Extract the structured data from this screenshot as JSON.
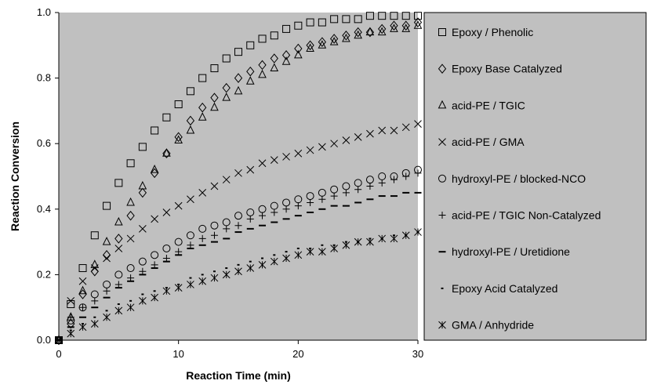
{
  "chart_data": {
    "type": "scatter",
    "title": "",
    "xlabel": "Reaction Time (min)",
    "ylabel": "Reaction Conversion",
    "xlim": [
      0,
      30
    ],
    "ylim": [
      0,
      1.0
    ],
    "xticks": [
      0,
      10,
      20,
      30
    ],
    "yticks": [
      0.0,
      0.2,
      0.4,
      0.6,
      0.8,
      1.0
    ],
    "ytick_labels": [
      "0.0",
      "0.2",
      "0.4",
      "0.6",
      "0.8",
      "1.0"
    ],
    "xtick_labels": [
      "0",
      "10",
      "20",
      "30"
    ],
    "grid": false,
    "plot_background": "#c0c0c0",
    "marker_color": "#000000",
    "legend_position": "right",
    "series": [
      {
        "name": "Epoxy / Phenolic",
        "marker": "square",
        "x": [
          0,
          1,
          2,
          3,
          4,
          5,
          6,
          7,
          8,
          9,
          10,
          11,
          12,
          13,
          14,
          15,
          16,
          17,
          18,
          19,
          20,
          21,
          22,
          23,
          24,
          25,
          26,
          27,
          28,
          29,
          30
        ],
        "y": [
          0,
          0.11,
          0.22,
          0.32,
          0.41,
          0.48,
          0.54,
          0.59,
          0.64,
          0.68,
          0.72,
          0.76,
          0.8,
          0.83,
          0.86,
          0.88,
          0.9,
          0.92,
          0.93,
          0.95,
          0.96,
          0.97,
          0.97,
          0.98,
          0.98,
          0.98,
          0.99,
          0.99,
          0.99,
          0.99,
          0.99
        ]
      },
      {
        "name": "Epoxy Base Catalyzed",
        "marker": "diamond",
        "x": [
          0,
          1,
          2,
          3,
          4,
          5,
          6,
          7,
          8,
          9,
          10,
          11,
          12,
          13,
          14,
          15,
          16,
          17,
          18,
          19,
          20,
          21,
          22,
          23,
          24,
          25,
          26,
          27,
          28,
          29,
          30
        ],
        "y": [
          0,
          0.05,
          0.14,
          0.21,
          0.26,
          0.31,
          0.38,
          0.45,
          0.51,
          0.57,
          0.62,
          0.67,
          0.71,
          0.74,
          0.77,
          0.8,
          0.82,
          0.84,
          0.86,
          0.87,
          0.89,
          0.9,
          0.91,
          0.92,
          0.93,
          0.94,
          0.94,
          0.95,
          0.96,
          0.96,
          0.97
        ]
      },
      {
        "name": "acid-PE / TGIC",
        "marker": "triangle",
        "x": [
          0,
          1,
          2,
          3,
          4,
          5,
          6,
          7,
          8,
          9,
          10,
          11,
          12,
          13,
          14,
          15,
          16,
          17,
          18,
          19,
          20,
          21,
          22,
          23,
          24,
          25,
          26,
          27,
          28,
          29,
          30
        ],
        "y": [
          0,
          0.07,
          0.15,
          0.23,
          0.3,
          0.36,
          0.42,
          0.47,
          0.52,
          0.57,
          0.61,
          0.64,
          0.68,
          0.71,
          0.74,
          0.76,
          0.79,
          0.81,
          0.83,
          0.85,
          0.87,
          0.89,
          0.9,
          0.91,
          0.92,
          0.93,
          0.94,
          0.94,
          0.95,
          0.95,
          0.96
        ]
      },
      {
        "name": "acid-PE / GMA",
        "marker": "x",
        "x": [
          0,
          1,
          2,
          3,
          4,
          5,
          6,
          7,
          8,
          9,
          10,
          11,
          12,
          13,
          14,
          15,
          16,
          17,
          18,
          19,
          20,
          21,
          22,
          23,
          24,
          25,
          26,
          27,
          28,
          29,
          30
        ],
        "y": [
          0,
          0.12,
          0.18,
          0.22,
          0.25,
          0.28,
          0.31,
          0.34,
          0.37,
          0.39,
          0.41,
          0.43,
          0.45,
          0.47,
          0.49,
          0.51,
          0.52,
          0.54,
          0.55,
          0.56,
          0.57,
          0.58,
          0.59,
          0.6,
          0.61,
          0.62,
          0.63,
          0.64,
          0.64,
          0.65,
          0.66
        ]
      },
      {
        "name": "hydroxyl-PE / blocked-NCO",
        "marker": "circle",
        "x": [
          0,
          1,
          2,
          3,
          4,
          5,
          6,
          7,
          8,
          9,
          10,
          11,
          12,
          13,
          14,
          15,
          16,
          17,
          18,
          19,
          20,
          21,
          22,
          23,
          24,
          25,
          26,
          27,
          28,
          29,
          30
        ],
        "y": [
          0,
          0.06,
          0.1,
          0.14,
          0.17,
          0.2,
          0.22,
          0.24,
          0.26,
          0.28,
          0.3,
          0.32,
          0.34,
          0.35,
          0.36,
          0.38,
          0.39,
          0.4,
          0.41,
          0.42,
          0.43,
          0.44,
          0.45,
          0.46,
          0.47,
          0.48,
          0.49,
          0.5,
          0.5,
          0.51,
          0.52
        ]
      },
      {
        "name": "acid-PE / TGIC Non-Catalyzed",
        "marker": "plus",
        "x": [
          0,
          1,
          2,
          3,
          4,
          5,
          6,
          7,
          8,
          9,
          10,
          11,
          12,
          13,
          14,
          15,
          16,
          17,
          18,
          19,
          20,
          21,
          22,
          23,
          24,
          25,
          26,
          27,
          28,
          29,
          30
        ],
        "y": [
          0,
          0.07,
          0.1,
          0.12,
          0.15,
          0.17,
          0.19,
          0.21,
          0.23,
          0.25,
          0.27,
          0.29,
          0.31,
          0.32,
          0.34,
          0.35,
          0.37,
          0.38,
          0.39,
          0.4,
          0.41,
          0.42,
          0.43,
          0.44,
          0.45,
          0.46,
          0.47,
          0.48,
          0.49,
          0.5,
          0.51
        ]
      },
      {
        "name": "hydroxyl-PE / Uretidione",
        "marker": "long-dash",
        "x": [
          0,
          1,
          2,
          3,
          4,
          5,
          6,
          7,
          8,
          9,
          10,
          11,
          12,
          13,
          14,
          15,
          16,
          17,
          18,
          19,
          20,
          21,
          22,
          23,
          24,
          25,
          26,
          27,
          28,
          29,
          30
        ],
        "y": [
          0,
          0.04,
          0.07,
          0.1,
          0.13,
          0.16,
          0.18,
          0.2,
          0.22,
          0.24,
          0.26,
          0.28,
          0.29,
          0.3,
          0.31,
          0.33,
          0.34,
          0.35,
          0.36,
          0.37,
          0.38,
          0.39,
          0.4,
          0.41,
          0.41,
          0.42,
          0.43,
          0.44,
          0.44,
          0.45,
          0.45
        ]
      },
      {
        "name": "Epoxy Acid Catalyzed",
        "marker": "short-dash",
        "x": [
          0,
          1,
          2,
          3,
          4,
          5,
          6,
          7,
          8,
          9,
          10,
          11,
          12,
          13,
          14,
          15,
          16,
          17,
          18,
          19,
          20,
          21,
          22,
          23,
          24,
          25,
          26,
          27,
          28,
          29,
          30
        ],
        "y": [
          0,
          0.03,
          0.05,
          0.07,
          0.09,
          0.11,
          0.12,
          0.14,
          0.15,
          0.16,
          0.17,
          0.19,
          0.2,
          0.21,
          0.22,
          0.23,
          0.24,
          0.25,
          0.26,
          0.27,
          0.28,
          0.28,
          0.29,
          0.29,
          0.3,
          0.3,
          0.31,
          0.31,
          0.32,
          0.32,
          0.33
        ]
      },
      {
        "name": "GMA / Anhydride",
        "marker": "asterisk",
        "x": [
          0,
          1,
          2,
          3,
          4,
          5,
          6,
          7,
          8,
          9,
          10,
          11,
          12,
          13,
          14,
          15,
          16,
          17,
          18,
          19,
          20,
          21,
          22,
          23,
          24,
          25,
          26,
          27,
          28,
          29,
          30
        ],
        "y": [
          0,
          0.02,
          0.04,
          0.05,
          0.07,
          0.09,
          0.1,
          0.12,
          0.13,
          0.15,
          0.16,
          0.17,
          0.18,
          0.19,
          0.2,
          0.21,
          0.22,
          0.23,
          0.24,
          0.25,
          0.26,
          0.27,
          0.27,
          0.28,
          0.29,
          0.3,
          0.3,
          0.31,
          0.31,
          0.32,
          0.33
        ]
      }
    ]
  }
}
